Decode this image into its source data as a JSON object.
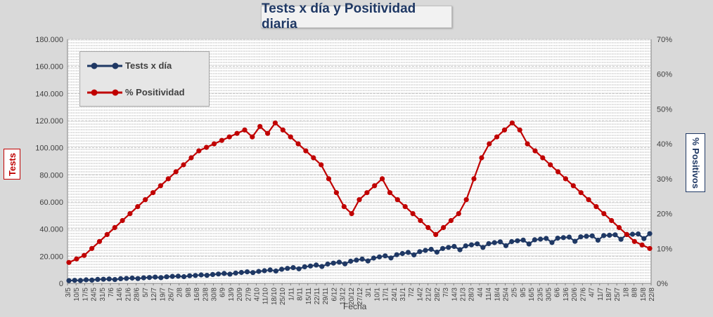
{
  "chart_data": {
    "type": "line",
    "title": "Tests x día y Positividad  diaria",
    "xlabel": "Fecha",
    "ylabel_left": "Tests",
    "ylabel_right": "% Positivos",
    "ylim_left": [
      0,
      180000
    ],
    "ylim_right": [
      0,
      70
    ],
    "yticks_left": [
      "0",
      "20.000",
      "40.000",
      "60.000",
      "80.000",
      "100.000",
      "120.000",
      "140.000",
      "160.000",
      "180.000"
    ],
    "yticks_right": [
      "0%",
      "10%",
      "20%",
      "30%",
      "40%",
      "50%",
      "60%",
      "70%"
    ],
    "x_ticks": [
      "3/5",
      "10/5",
      "17/5",
      "24/5",
      "31/5",
      "7/6",
      "14/6",
      "21/6",
      "28/6",
      "5/7",
      "12/7",
      "19/7",
      "26/7",
      "2/8",
      "9/8",
      "16/8",
      "23/8",
      "30/8",
      "6/9",
      "13/9",
      "20/9",
      "27/9",
      "4/10",
      "11/10",
      "18/10",
      "25/10",
      "1/11",
      "8/11",
      "15/11",
      "22/11",
      "29/11",
      "6/12",
      "13/12",
      "20/12",
      "27/12",
      "3/1",
      "10/1",
      "17/1",
      "24/1",
      "31/1",
      "7/2",
      "14/2",
      "21/2",
      "28/2",
      "7/3",
      "14/3",
      "21/3",
      "28/3",
      "4/4",
      "11/4",
      "18/4",
      "25/4",
      "2/5",
      "9/5",
      "16/5",
      "23/5",
      "30/5",
      "6/6",
      "13/6",
      "20/6",
      "27/6",
      "4/7",
      "11/7",
      "18/7",
      "25/7",
      "1/8",
      "8/8",
      "15/8",
      "22/8"
    ],
    "grid": true,
    "legend_position": "top-left",
    "series": [
      {
        "name": "Tests x día",
        "axis": "left",
        "color": "#1f3864",
        "values": [
          2000,
          2200,
          2100,
          2600,
          2400,
          2900,
          3000,
          3200,
          2800,
          3400,
          3600,
          3900,
          3500,
          4100,
          4300,
          4600,
          4200,
          4800,
          5100,
          5300,
          4900,
          5600,
          5800,
          6200,
          5900,
          6500,
          6900,
          7300,
          6800,
          7600,
          8000,
          8500,
          7900,
          8800,
          9300,
          9900,
          9100,
          10400,
          11000,
          11600,
          10700,
          12200,
          12800,
          13500,
          12400,
          14200,
          14900,
          15600,
          14400,
          16300,
          17100,
          17900,
          16500,
          18600,
          19500,
          20300,
          18700,
          21100,
          22000,
          22800,
          21000,
          23400,
          24300,
          25100,
          23000,
          25700,
          26500,
          27200,
          24800,
          27600,
          28400,
          29100,
          26500,
          29300,
          30000,
          30600,
          27800,
          30800,
          31400,
          31900,
          29000,
          32100,
          32600,
          33100,
          30100,
          33300,
          33700,
          34100,
          31000,
          34300,
          34700,
          35000,
          31800,
          35200,
          35500,
          35800,
          32500,
          36000,
          36200,
          36400,
          33000,
          36600
        ],
        "note": "approximate daily test counts"
      },
      {
        "name": "% Positividad",
        "axis": "right",
        "color": "#c00000",
        "values": [
          6,
          7,
          8,
          10,
          12,
          14,
          16,
          18,
          20,
          22,
          24,
          26,
          28,
          30,
          32,
          34,
          36,
          38,
          39,
          40,
          41,
          42,
          43,
          44,
          42,
          45,
          43,
          46,
          44,
          42,
          40,
          38,
          36,
          34,
          30,
          26,
          22,
          20,
          24,
          26,
          28,
          30,
          26,
          24,
          22,
          20,
          18,
          16,
          14,
          16,
          18,
          20,
          24,
          30,
          36,
          40,
          42,
          44,
          46,
          44,
          40,
          38,
          36,
          34,
          32,
          30,
          28,
          26,
          24,
          22,
          20,
          18,
          16,
          14,
          12,
          11,
          10
        ]
      }
    ]
  }
}
